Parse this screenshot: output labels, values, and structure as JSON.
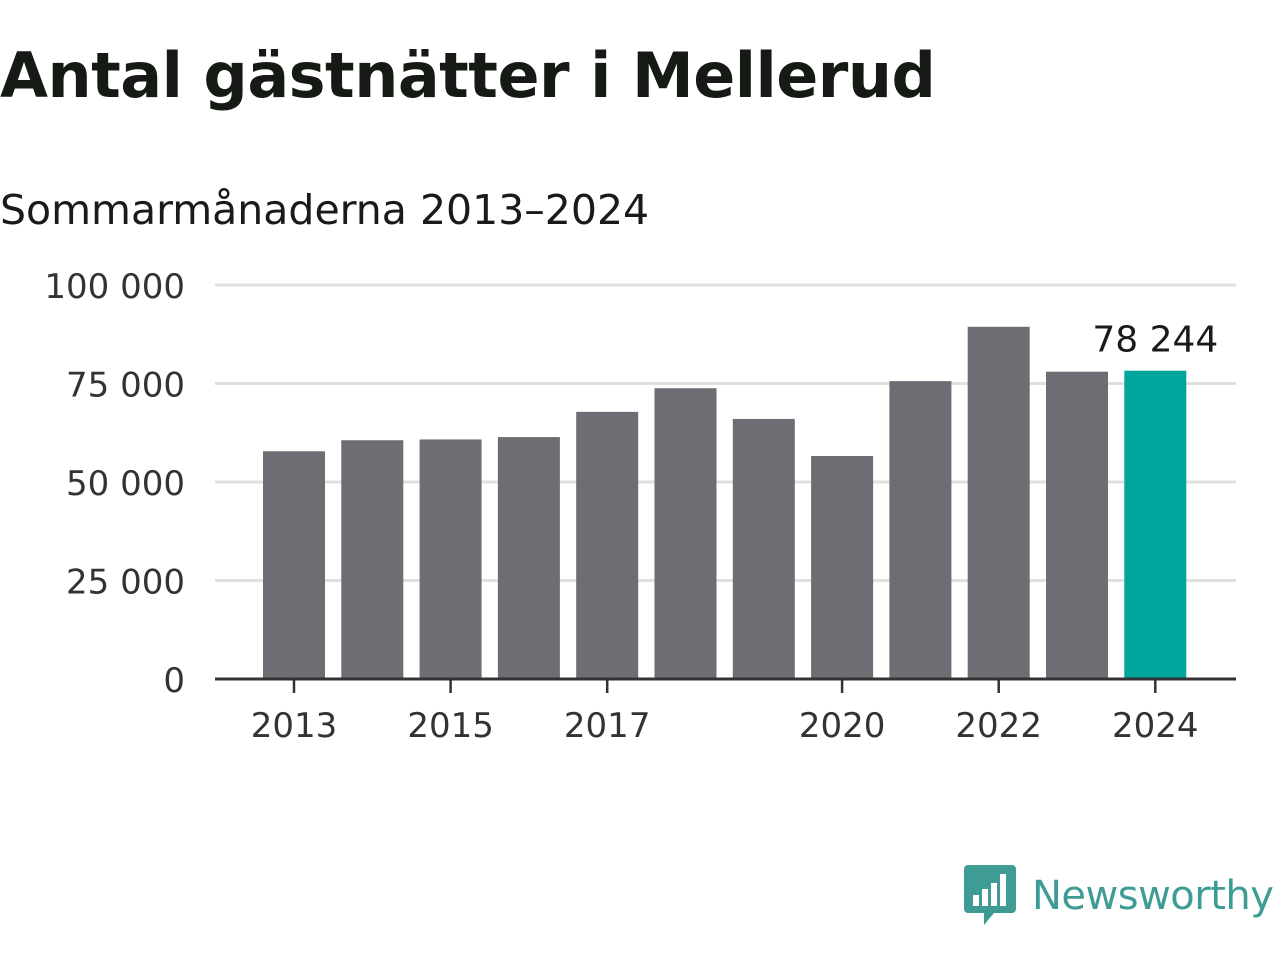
{
  "chart_data": {
    "type": "bar",
    "title": "Antal gästnätter i Mellerud",
    "subtitle": "Sommarmånaderna 2013–2024",
    "categories": [
      "2013",
      "2014",
      "2015",
      "2016",
      "2017",
      "2018",
      "2019",
      "2020",
      "2021",
      "2022",
      "2023",
      "2024"
    ],
    "values": [
      57800,
      60600,
      60800,
      61400,
      67800,
      73800,
      66000,
      56600,
      75600,
      89400,
      78000,
      78244
    ],
    "x_tick_labels": [
      "2013",
      "2015",
      "2017",
      "2020",
      "2022",
      "2024"
    ],
    "y_ticks": [
      0,
      25000,
      50000,
      75000,
      100000
    ],
    "y_tick_labels": [
      "0",
      "25 000",
      "50 000",
      "75 000",
      "100 000"
    ],
    "ylim": [
      0,
      100000
    ],
    "xlabel": "",
    "ylabel": "",
    "grid": true,
    "bar_color": "#6e6d73",
    "highlight_color": "#00a59b",
    "highlight_index": 11,
    "annotation": {
      "category": "2024",
      "text": "78 244"
    }
  },
  "branding": {
    "name": "Newsworthy",
    "color": "#3e9c95",
    "icon": "bar-chart-speech-bubble-icon"
  }
}
